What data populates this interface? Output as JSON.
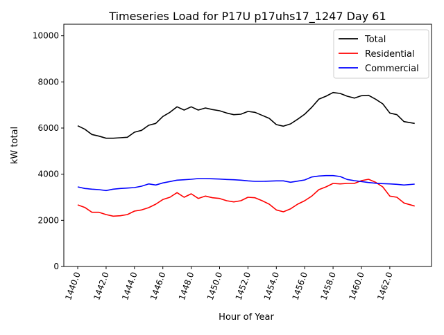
{
  "chart_data": {
    "type": "line",
    "title": "Timeseries Load for P17U p17uhs17_1247  Day 61",
    "xlabel": "Hour of Year",
    "ylabel": "kW total",
    "xlim": [
      1439.02,
      1464.94
    ],
    "ylim": [
      0,
      10500
    ],
    "xticks": [
      1440,
      1442,
      1444,
      1446,
      1448,
      1450,
      1452,
      1454,
      1456,
      1458,
      1460,
      1462
    ],
    "xtick_labels": [
      "1440.0",
      "1442.0",
      "1444.0",
      "1446.0",
      "1448.0",
      "1450.0",
      "1452.0",
      "1454.0",
      "1456.0",
      "1458.0",
      "1460.0",
      "1462.0"
    ],
    "yticks": [
      0,
      2000,
      4000,
      6000,
      8000,
      10000
    ],
    "ytick_labels": [
      "0",
      "2000",
      "4000",
      "6000",
      "8000",
      "10000"
    ],
    "grid": false,
    "legend_position": "top-right",
    "x": [
      1440,
      1440.5,
      1441,
      1441.5,
      1442,
      1442.5,
      1443,
      1443.5,
      1444,
      1444.5,
      1445,
      1445.5,
      1446,
      1446.5,
      1447,
      1447.5,
      1448,
      1448.5,
      1449,
      1449.5,
      1450,
      1450.5,
      1451,
      1451.5,
      1452,
      1452.5,
      1453,
      1453.5,
      1454,
      1454.5,
      1455,
      1455.5,
      1456,
      1456.5,
      1457,
      1457.5,
      1458,
      1458.5,
      1459,
      1459.5,
      1460,
      1460.5,
      1461,
      1461.5,
      1462,
      1462.5,
      1463,
      1463.75
    ],
    "series": [
      {
        "name": "Total",
        "color": "#000000",
        "values": [
          6100,
          5950,
          5720,
          5650,
          5560,
          5560,
          5580,
          5600,
          5820,
          5900,
          6120,
          6200,
          6500,
          6680,
          6920,
          6780,
          6920,
          6780,
          6870,
          6800,
          6750,
          6650,
          6580,
          6600,
          6720,
          6680,
          6550,
          6420,
          6150,
          6080,
          6180,
          6380,
          6600,
          6900,
          7250,
          7380,
          7540,
          7500,
          7380,
          7300,
          7400,
          7420,
          7250,
          7050,
          6650,
          6580,
          6280,
          6200
        ]
      },
      {
        "name": "Residential",
        "color": "#ff0000",
        "values": [
          2670,
          2560,
          2350,
          2350,
          2250,
          2180,
          2200,
          2250,
          2400,
          2450,
          2550,
          2700,
          2900,
          3000,
          3200,
          3000,
          3150,
          2950,
          3050,
          2980,
          2950,
          2850,
          2800,
          2850,
          3000,
          2980,
          2850,
          2700,
          2450,
          2370,
          2500,
          2700,
          2850,
          3050,
          3330,
          3450,
          3600,
          3580,
          3600,
          3600,
          3720,
          3780,
          3650,
          3450,
          3050,
          3000,
          2750,
          2620
        ]
      },
      {
        "name": "Commercial",
        "color": "#0000ff",
        "values": [
          3450,
          3380,
          3350,
          3330,
          3290,
          3350,
          3380,
          3400,
          3420,
          3480,
          3580,
          3530,
          3620,
          3680,
          3740,
          3760,
          3780,
          3810,
          3810,
          3800,
          3790,
          3770,
          3760,
          3740,
          3710,
          3690,
          3690,
          3700,
          3710,
          3710,
          3650,
          3700,
          3750,
          3880,
          3920,
          3940,
          3940,
          3900,
          3770,
          3720,
          3680,
          3640,
          3610,
          3590,
          3580,
          3560,
          3530,
          3570
        ]
      }
    ]
  }
}
